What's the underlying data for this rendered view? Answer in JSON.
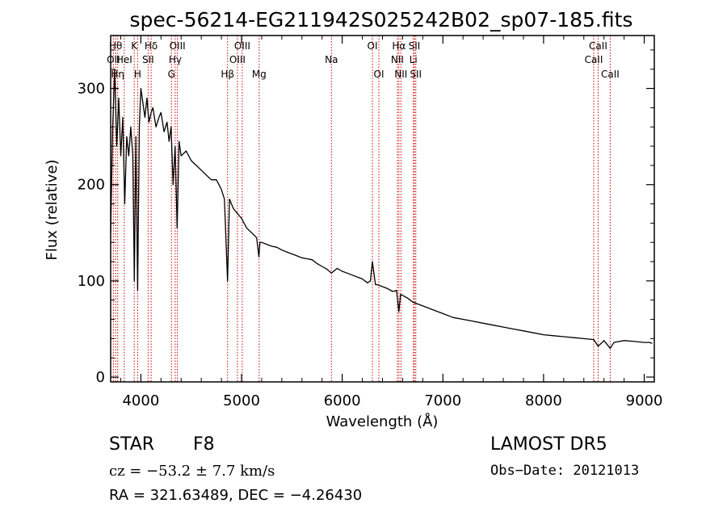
{
  "chart_data": {
    "type": "line",
    "title": "spec-56214-EG211942S025242B02_sp07-185.fits",
    "xlabel": "Wavelength (Å)",
    "ylabel": "Flux (relative)",
    "xlim": [
      3700,
      9100
    ],
    "ylim": [
      -5,
      355
    ],
    "xticks": [
      4000,
      5000,
      6000,
      7000,
      8000,
      9000
    ],
    "yticks": [
      0,
      100,
      200,
      300
    ],
    "grid": false,
    "series": [
      {
        "color": "#000000",
        "x": [
          3700,
          3720,
          3740,
          3760,
          3780,
          3800,
          3820,
          3840,
          3860,
          3880,
          3900,
          3920,
          3935,
          3950,
          3968,
          3985,
          4000,
          4020,
          4040,
          4060,
          4080,
          4102,
          4120,
          4150,
          4180,
          4200,
          4230,
          4260,
          4280,
          4300,
          4320,
          4340,
          4360,
          4380,
          4400,
          4450,
          4500,
          4550,
          4600,
          4650,
          4700,
          4750,
          4800,
          4830,
          4861,
          4880,
          4920,
          4960,
          5000,
          5050,
          5100,
          5150,
          5172,
          5183,
          5200,
          5250,
          5300,
          5350,
          5400,
          5450,
          5500,
          5550,
          5600,
          5650,
          5700,
          5750,
          5800,
          5850,
          5893,
          5950,
          6000,
          6050,
          6100,
          6150,
          6200,
          6250,
          6280,
          6300,
          6330,
          6350,
          6400,
          6450,
          6500,
          6540,
          6563,
          6580,
          6600,
          6650,
          6700,
          6750,
          6800,
          6900,
          7000,
          7100,
          7200,
          7300,
          7400,
          7500,
          7600,
          7700,
          7800,
          7900,
          8000,
          8100,
          8200,
          8300,
          8400,
          8498,
          8542,
          8600,
          8662,
          8700,
          8800,
          8900,
          9000,
          9050,
          9080
        ],
        "y": [
          150,
          260,
          320,
          240,
          290,
          230,
          270,
          180,
          250,
          230,
          260,
          230,
          100,
          250,
          90,
          260,
          300,
          285,
          270,
          290,
          265,
          275,
          280,
          260,
          270,
          275,
          255,
          265,
          245,
          260,
          200,
          240,
          155,
          245,
          230,
          235,
          225,
          220,
          215,
          210,
          205,
          205,
          195,
          185,
          100,
          185,
          175,
          170,
          165,
          155,
          150,
          145,
          125,
          140,
          140,
          138,
          136,
          135,
          132,
          130,
          128,
          126,
          124,
          123,
          122,
          118,
          115,
          112,
          108,
          113,
          110,
          108,
          106,
          104,
          102,
          98,
          100,
          120,
          96,
          96,
          94,
          92,
          89,
          90,
          68,
          86,
          85,
          82,
          78,
          76,
          74,
          70,
          66,
          62,
          60,
          58,
          56,
          54,
          52,
          50,
          48,
          46,
          44,
          43,
          42,
          41,
          40,
          39,
          32,
          38,
          30,
          36,
          38,
          37,
          36,
          36,
          35
        ]
      }
    ],
    "line_markers": [
      {
        "wave": 3727,
        "label": "OII",
        "row": 1
      },
      {
        "wave": 3750,
        "label": "Hθ",
        "row": 0
      },
      {
        "wave": 3770,
        "label": "Hη",
        "row": 2
      },
      {
        "wave": 3835,
        "label": "HeI",
        "row": 1
      },
      {
        "wave": 3934,
        "label": "K",
        "row": 0
      },
      {
        "wave": 3968,
        "label": "H",
        "row": 2
      },
      {
        "wave": 4072,
        "label": "SII",
        "row": 1
      },
      {
        "wave": 4102,
        "label": "Hδ",
        "row": 0
      },
      {
        "wave": 4304,
        "label": "G",
        "row": 2
      },
      {
        "wave": 4341,
        "label": "Hγ",
        "row": 1
      },
      {
        "wave": 4363,
        "label": "OIII",
        "row": 0
      },
      {
        "wave": 4861,
        "label": "Hβ",
        "row": 2
      },
      {
        "wave": 4959,
        "label": "OIII",
        "row": 1
      },
      {
        "wave": 5007,
        "label": "OIII",
        "row": 0
      },
      {
        "wave": 5175,
        "label": "Mg",
        "row": 2
      },
      {
        "wave": 5893,
        "label": "Na",
        "row": 1
      },
      {
        "wave": 6300,
        "label": "OI",
        "row": 0
      },
      {
        "wave": 6364,
        "label": "OI",
        "row": 2
      },
      {
        "wave": 6548,
        "label": "NII",
        "row": 1
      },
      {
        "wave": 6563,
        "label": "Hα",
        "row": 0
      },
      {
        "wave": 6583,
        "label": "NII",
        "row": 2
      },
      {
        "wave": 6707,
        "label": "Li",
        "row": 1
      },
      {
        "wave": 6717,
        "label": "SII",
        "row": 0
      },
      {
        "wave": 6731,
        "label": "SII",
        "row": 2
      },
      {
        "wave": 8498,
        "label": "CaII",
        "row": 1
      },
      {
        "wave": 8542,
        "label": "CaII",
        "row": 0
      },
      {
        "wave": 8662,
        "label": "CaII",
        "row": 2
      }
    ],
    "marker_color": "#cc0000"
  },
  "info": {
    "class_label": "STAR",
    "subclass": "F8",
    "survey": "LAMOST  DR5",
    "cz": "cz = −53.2 ± 7.7 km/s",
    "obs_date": "Obs−Date: 20121013",
    "coords": "RA = 321.63489, DEC =  −4.26430"
  }
}
